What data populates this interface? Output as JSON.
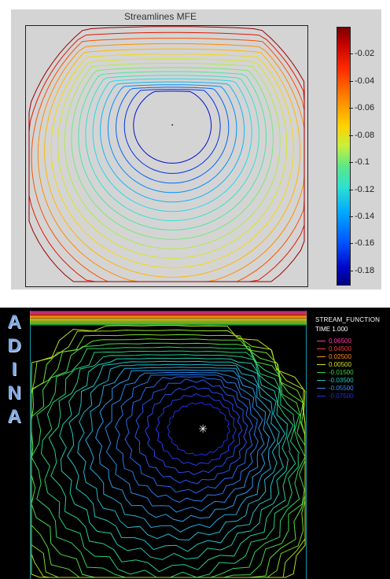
{
  "chart_data": [
    {
      "type": "contour",
      "title": "Streamlines MFE",
      "xlabel": "",
      "ylabel": "",
      "colorbar": {
        "ticks": [
          "-0.02",
          "-0.04",
          "-0.06",
          "-0.08",
          "-0.1",
          "-0.12",
          "-0.14",
          "-0.16",
          "-0.18"
        ],
        "tick_values": [
          -0.02,
          -0.04,
          -0.06,
          -0.08,
          -0.1,
          -0.12,
          -0.14,
          -0.16,
          -0.18
        ],
        "range": [
          -0.19,
          0.0
        ],
        "colormap": "jet",
        "low_color": "#000080",
        "high_color": "#7a0000"
      },
      "background": "#d4d4d4",
      "contour_levels": 17,
      "vortex_center": [
        0.52,
        0.62
      ]
    },
    {
      "type": "contour",
      "legend_title": "STREAM_FUNCTION",
      "time_label": "TIME 1.000",
      "levels": [
        {
          "label": "0.06500",
          "color": "#ff3aa0"
        },
        {
          "label": "0.04500",
          "color": "#ff3a3a"
        },
        {
          "label": "0.02500",
          "color": "#ff8c1a"
        },
        {
          "label": "0.00500",
          "color": "#d8e020"
        },
        {
          "label": "-0.01500",
          "color": "#38d838"
        },
        {
          "label": "-0.03500",
          "color": "#20c8c0"
        },
        {
          "label": "-0.05500",
          "color": "#3a8cf0"
        },
        {
          "label": "-0.07500",
          "color": "#2a2ae8"
        }
      ],
      "background": "#000000",
      "contour_levels": 20,
      "vortex_center": [
        0.62,
        0.56
      ]
    }
  ],
  "brand": {
    "letters": [
      "A",
      "D",
      "I",
      "N",
      "A"
    ]
  }
}
